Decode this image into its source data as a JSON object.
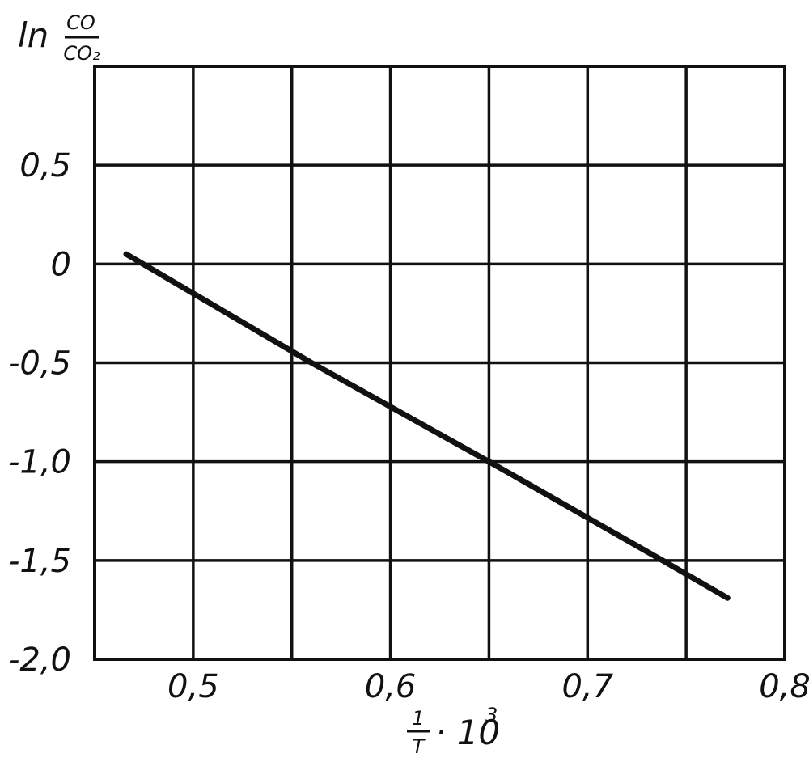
{
  "chart_data": {
    "type": "line",
    "title": "",
    "xlabel": {
      "numerator": "1",
      "denominator": "T",
      "multiplier": "· 10",
      "exponent": "3"
    },
    "ylabel": {
      "prefix": "ln",
      "numerator": "CO",
      "denominator": "CO₂"
    },
    "xlim": [
      0.45,
      0.8
    ],
    "ylim": [
      -2.0,
      1.0
    ],
    "grid": true,
    "x_ticks": [
      {
        "value": 0.5,
        "label": "0,5"
      },
      {
        "value": 0.6,
        "label": "0,6"
      },
      {
        "value": 0.7,
        "label": "0,7"
      },
      {
        "value": 0.8,
        "label": "0,8"
      }
    ],
    "x_gridlines": [
      0.5,
      0.55,
      0.6,
      0.65,
      0.7,
      0.75
    ],
    "y_ticks": [
      {
        "value": 0.5,
        "label": "0,5"
      },
      {
        "value": 0,
        "label": "0"
      },
      {
        "value": -0.5,
        "label": "-0,5"
      },
      {
        "value": -1.0,
        "label": "-1,0"
      },
      {
        "value": -1.5,
        "label": "-1,5"
      },
      {
        "value": -2.0,
        "label": "-2,0"
      }
    ],
    "y_gridlines": [
      0.5,
      0,
      -0.5,
      -1.0,
      -1.5
    ],
    "series": [
      {
        "x": [
          0.466,
          0.56,
          0.65,
          0.738,
          0.771
        ],
        "y": [
          0.05,
          -0.5,
          -1.0,
          -1.5,
          -1.69
        ],
        "color": "#111111"
      }
    ]
  }
}
